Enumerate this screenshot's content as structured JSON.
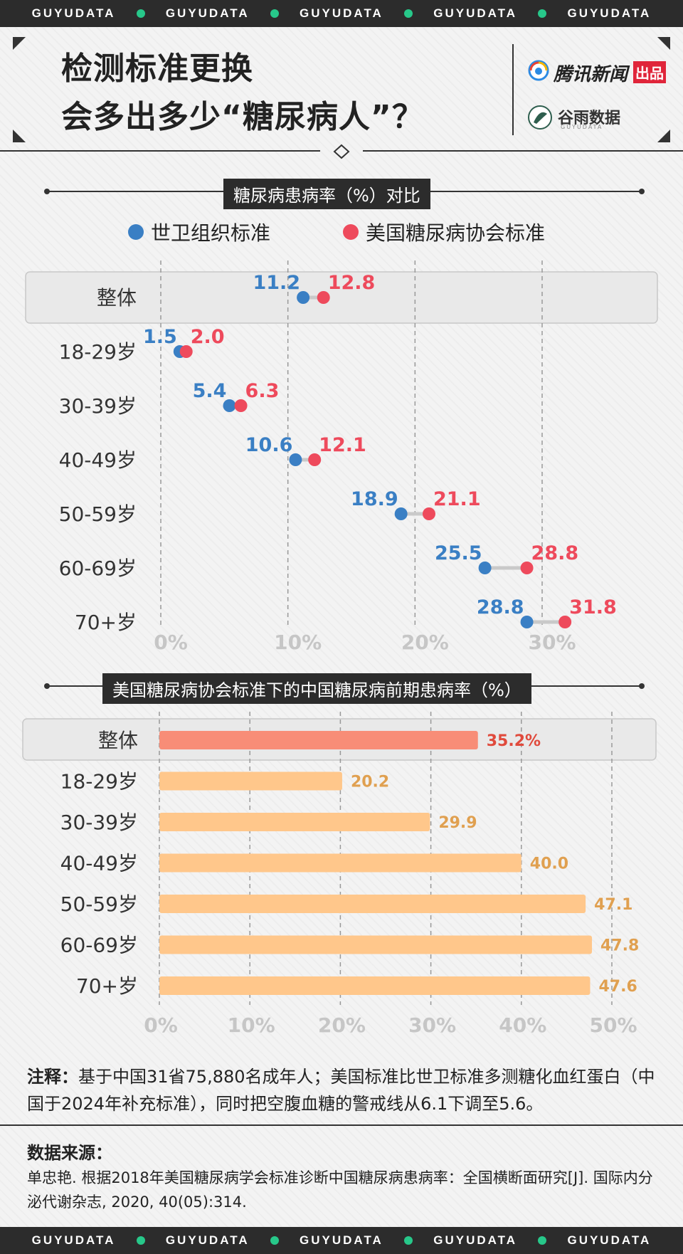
{
  "header": {
    "band_word": "GUYUDATA",
    "title_line1": "检测标准更换",
    "title_line2": "会多出多少“糖尿病人”？",
    "brand1_name": "腾讯新闻",
    "brand1_tag": "出品",
    "brand2_name": "谷雨数据",
    "brand2_sub": "GUYUDATA"
  },
  "colors": {
    "who": "#3a7fc4",
    "ada": "#ee4a5c",
    "overall_bar": "#f88d77",
    "age_bar": "#ffc78b",
    "overall_label": "#e04a3c",
    "age_label": "#e0a050"
  },
  "chart_data": [
    {
      "type": "dumbbell",
      "title": "糖尿病患病率（%）对比",
      "series": [
        {
          "name": "世卫组织标准",
          "values": [
            11.2,
            1.5,
            5.4,
            10.6,
            18.9,
            25.5,
            28.8
          ]
        },
        {
          "name": "美国糖尿病协会标准",
          "values": [
            12.8,
            2.0,
            6.3,
            12.1,
            21.1,
            28.8,
            31.8
          ]
        }
      ],
      "categories": [
        "整体",
        "18-29岁",
        "30-39岁",
        "40-49岁",
        "50-59岁",
        "60-69岁",
        "70+岁"
      ],
      "value_labels_who": [
        "11.2",
        "1.5",
        "5.4",
        "10.6",
        "18.9",
        "25.5",
        "28.8"
      ],
      "value_labels_ada": [
        "12.8",
        "2.0",
        "6.3",
        "12.1",
        "21.1",
        "28.8",
        "31.8"
      ],
      "xlim": [
        0,
        30
      ],
      "ticks": [
        0,
        10,
        20,
        30
      ],
      "tick_labels": [
        "0%",
        "10%",
        "20%",
        "30%"
      ],
      "grid": true
    },
    {
      "type": "bar",
      "title": "美国糖尿病协会标准下的中国糖尿病前期患病率（%）",
      "categories": [
        "整体",
        "18-29岁",
        "30-39岁",
        "40-49岁",
        "50-59岁",
        "60-69岁",
        "70+岁"
      ],
      "values": [
        35.2,
        20.2,
        29.9,
        40.0,
        47.1,
        47.8,
        47.6
      ],
      "value_labels": [
        "35.2%",
        "20.2",
        "29.9",
        "40.0",
        "47.1",
        "47.8",
        "47.6"
      ],
      "xlim": [
        0,
        50
      ],
      "ticks": [
        0,
        10,
        20,
        30,
        40,
        50
      ],
      "tick_labels": [
        "0%",
        "10%",
        "20%",
        "30%",
        "40%",
        "50%"
      ],
      "grid": true
    }
  ],
  "note": {
    "label": "注释：",
    "text": "基于中国31省75,880名成年人；美国标准比世卫标准多测糖化血红蛋白（中国于2024年补充标准），同时把空腹血糖的警戒线从6.1下调至5.6。"
  },
  "source": {
    "label": "数据来源：",
    "text": "单忠艳. 根据2018年美国糖尿病学会标准诊断中国糖尿病患病率：全国横断面研究[J]. 国际内分泌代谢杂志, 2020, 40(05):314."
  }
}
